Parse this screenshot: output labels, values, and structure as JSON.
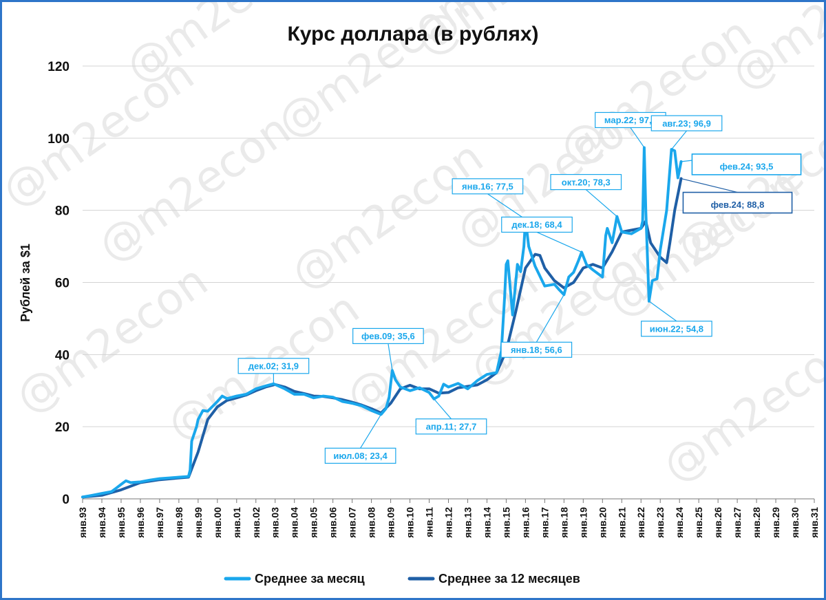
{
  "watermark": "@m2econ",
  "chart_data": {
    "type": "line",
    "title": "Курс доллара (в рублях)",
    "ylabel": "Рублей за $1",
    "xlabel": "",
    "ylim": [
      0,
      120
    ],
    "yticks": [
      0,
      20,
      40,
      60,
      80,
      100,
      120
    ],
    "xlim": [
      1993.0,
      2031.0
    ],
    "grid": true,
    "legend_position": "bottom",
    "x_tick_labels": [
      "янв.93",
      "янв.94",
      "янв.95",
      "янв.96",
      "янв.97",
      "янв.98",
      "янв.99",
      "янв.00",
      "янв.01",
      "янв.02",
      "янв.03",
      "янв.04",
      "янв.05",
      "янв.06",
      "янв.07",
      "янв.08",
      "янв.09",
      "янв.10",
      "янв.11",
      "янв.12",
      "янв.13",
      "янв.14",
      "янв.15",
      "янв.16",
      "янв.17",
      "янв.18",
      "янв.19",
      "янв.20",
      "янв.21",
      "янв.22",
      "янв.23",
      "янв.24",
      "янв.25",
      "янв.26",
      "янв.27",
      "янв.28",
      "янв.29",
      "янв.30",
      "янв.31"
    ],
    "series": [
      {
        "name": "Среднее за месяц",
        "color": "#1aa7ec",
        "points": [
          [
            "янв.93",
            0.5
          ],
          [
            "июл.93",
            1.0
          ],
          [
            "янв.94",
            1.5
          ],
          [
            "июл.94",
            2.0
          ],
          [
            "окт.94",
            3.0
          ],
          [
            "янв.95",
            4.0
          ],
          [
            "апр.95",
            5.0
          ],
          [
            "июл.95",
            4.5
          ],
          [
            "янв.96",
            4.7
          ],
          [
            "июл.96",
            5.2
          ],
          [
            "янв.97",
            5.6
          ],
          [
            "июл.97",
            5.8
          ],
          [
            "янв.98",
            6.0
          ],
          [
            "июл.98",
            6.2
          ],
          [
            "авг.98",
            8.0
          ],
          [
            "сен.98",
            16.0
          ],
          [
            "дек.98",
            20.0
          ],
          [
            "янв.99",
            22.0
          ],
          [
            "апр.99",
            24.5
          ],
          [
            "июл.99",
            24.3
          ],
          [
            "янв.00",
            27.0
          ],
          [
            "апр.00",
            28.5
          ],
          [
            "июл.00",
            27.8
          ],
          [
            "янв.01",
            28.5
          ],
          [
            "июл.01",
            29.0
          ],
          [
            "янв.02",
            30.5
          ],
          [
            "июл.02",
            31.3
          ],
          [
            "дек.02",
            31.9
          ],
          [
            "июл.03",
            30.5
          ],
          [
            "янв.04",
            29.0
          ],
          [
            "июл.04",
            29.0
          ],
          [
            "янв.05",
            28.0
          ],
          [
            "июл.05",
            28.5
          ],
          [
            "янв.06",
            28.2
          ],
          [
            "июл.06",
            27.0
          ],
          [
            "янв.07",
            26.5
          ],
          [
            "июл.07",
            25.8
          ],
          [
            "янв.08",
            24.5
          ],
          [
            "июл.08",
            23.4
          ],
          [
            "окт.08",
            25.0
          ],
          [
            "дек.08",
            28.0
          ],
          [
            "фев.09",
            35.6
          ],
          [
            "апр.09",
            33.0
          ],
          [
            "июл.09",
            31.0
          ],
          [
            "янв.10",
            30.0
          ],
          [
            "июл.10",
            30.8
          ],
          [
            "янв.11",
            29.5
          ],
          [
            "апр.11",
            27.7
          ],
          [
            "июл.11",
            28.5
          ],
          [
            "окт.11",
            31.8
          ],
          [
            "янв.12",
            31.0
          ],
          [
            "июл.12",
            32.0
          ],
          [
            "янв.13",
            30.5
          ],
          [
            "июл.13",
            32.8
          ],
          [
            "янв.14",
            34.5
          ],
          [
            "июл.14",
            35.0
          ],
          [
            "окт.14",
            41.0
          ],
          [
            "дек.14",
            56.0
          ],
          [
            "янв.15",
            65.0
          ],
          [
            "фев.15",
            66.0
          ],
          [
            "май.15",
            51.0
          ],
          [
            "авг.15",
            65.0
          ],
          [
            "окт.15",
            63.0
          ],
          [
            "дек.15",
            70.0
          ],
          [
            "янв.16",
            77.5
          ],
          [
            "мар.16",
            70.0
          ],
          [
            "июл.16",
            64.5
          ],
          [
            "янв.17",
            59.0
          ],
          [
            "июл.17",
            59.5
          ],
          [
            "окт.17",
            58.0
          ],
          [
            "янв.18",
            56.6
          ],
          [
            "апр.18",
            61.5
          ],
          [
            "июл.18",
            62.8
          ],
          [
            "окт.18",
            66.0
          ],
          [
            "дек.18",
            68.4
          ],
          [
            "мар.19",
            65.0
          ],
          [
            "июл.19",
            63.5
          ],
          [
            "янв.20",
            61.5
          ],
          [
            "мар.20",
            73.0
          ],
          [
            "апр.20",
            75.0
          ],
          [
            "июл.20",
            71.0
          ],
          [
            "окт.20",
            78.3
          ],
          [
            "янв.21",
            74.0
          ],
          [
            "июл.21",
            73.5
          ],
          [
            "янв.22",
            75.0
          ],
          [
            "фев.22",
            77.0
          ],
          [
            "мар.22",
            97.4
          ],
          [
            "апр.22",
            80.0
          ],
          [
            "июн.22",
            54.8
          ],
          [
            "авг.22",
            60.5
          ],
          [
            "ноя.22",
            61.0
          ],
          [
            "янв.23",
            69.0
          ],
          [
            "май.23",
            80.0
          ],
          [
            "авг.23",
            96.9
          ],
          [
            "окт.23",
            96.5
          ],
          [
            "дек.23",
            89.0
          ],
          [
            "фев.24",
            93.5
          ]
        ]
      },
      {
        "name": "Среднее за 12 месяцев",
        "color": "#1f5fa6",
        "points": [
          [
            "янв.93",
            0.5
          ],
          [
            "янв.94",
            1.0
          ],
          [
            "янв.95",
            2.5
          ],
          [
            "янв.96",
            4.5
          ],
          [
            "янв.97",
            5.3
          ],
          [
            "янв.98",
            5.8
          ],
          [
            "июл.98",
            6.0
          ],
          [
            "янв.99",
            13.0
          ],
          [
            "июл.99",
            22.0
          ],
          [
            "янв.00",
            25.5
          ],
          [
            "июл.00",
            27.3
          ],
          [
            "янв.01",
            28.0
          ],
          [
            "июл.01",
            28.8
          ],
          [
            "янв.02",
            30.0
          ],
          [
            "июл.02",
            31.0
          ],
          [
            "янв.03",
            31.7
          ],
          [
            "июл.03",
            31.0
          ],
          [
            "янв.04",
            29.8
          ],
          [
            "июл.04",
            29.2
          ],
          [
            "янв.05",
            28.5
          ],
          [
            "июл.05",
            28.4
          ],
          [
            "янв.06",
            28.0
          ],
          [
            "июл.06",
            27.5
          ],
          [
            "янв.07",
            26.8
          ],
          [
            "июл.07",
            26.0
          ],
          [
            "янв.08",
            25.0
          ],
          [
            "июл.08",
            23.8
          ],
          [
            "янв.09",
            26.5
          ],
          [
            "июл.09",
            30.5
          ],
          [
            "янв.10",
            31.5
          ],
          [
            "июл.10",
            30.5
          ],
          [
            "янв.11",
            30.5
          ],
          [
            "июл.11",
            29.3
          ],
          [
            "янв.12",
            29.5
          ],
          [
            "июл.12",
            30.8
          ],
          [
            "янв.13",
            31.2
          ],
          [
            "июл.13",
            31.6
          ],
          [
            "янв.14",
            33.0
          ],
          [
            "июл.14",
            35.0
          ],
          [
            "янв.15",
            41.0
          ],
          [
            "июл.15",
            52.0
          ],
          [
            "янв.16",
            64.0
          ],
          [
            "июл.16",
            67.8
          ],
          [
            "окт.16",
            67.5
          ],
          [
            "янв.17",
            64.0
          ],
          [
            "июл.17",
            60.5
          ],
          [
            "янв.18",
            58.5
          ],
          [
            "июл.18",
            60.0
          ],
          [
            "янв.19",
            64.0
          ],
          [
            "июл.19",
            65.0
          ],
          [
            "янв.20",
            64.0
          ],
          [
            "июл.20",
            68.5
          ],
          [
            "янв.21",
            74.0
          ],
          [
            "июл.21",
            74.5
          ],
          [
            "янв.22",
            75.0
          ],
          [
            "апр.22",
            77.0
          ],
          [
            "июл.22",
            71.0
          ],
          [
            "янв.23",
            67.0
          ],
          [
            "май.23",
            65.5
          ],
          [
            "июл.23",
            71.0
          ],
          [
            "окт.23",
            80.0
          ],
          [
            "фев.24",
            88.8
          ]
        ]
      }
    ],
    "annotations": [
      {
        "series": "Среднее за месяц",
        "text": "дек.02; 31,9"
      },
      {
        "series": "Среднее за месяц",
        "text": "фев.09; 35,6"
      },
      {
        "series": "Среднее за месяц",
        "text": "июл.08; 23,4"
      },
      {
        "series": "Среднее за месяц",
        "text": "апр.11; 27,7"
      },
      {
        "series": "Среднее за месяц",
        "text": "янв.16; 77,5"
      },
      {
        "series": "Среднее за месяц",
        "text": "янв.18; 56,6"
      },
      {
        "series": "Среднее за месяц",
        "text": "дек.18; 68,4"
      },
      {
        "series": "Среднее за месяц",
        "text": "окт.20; 78,3"
      },
      {
        "series": "Среднее за месяц",
        "text": "мар.22; 97,4"
      },
      {
        "series": "Среднее за месяц",
        "text": "июн.22; 54,8"
      },
      {
        "series": "Среднее за месяц",
        "text": "авг.23; 96,9"
      },
      {
        "series": "Среднее за месяц",
        "text": "фев.24; 93,5"
      },
      {
        "series": "Среднее за 12 месяцев",
        "text": "фев.24; 88,8"
      }
    ]
  }
}
